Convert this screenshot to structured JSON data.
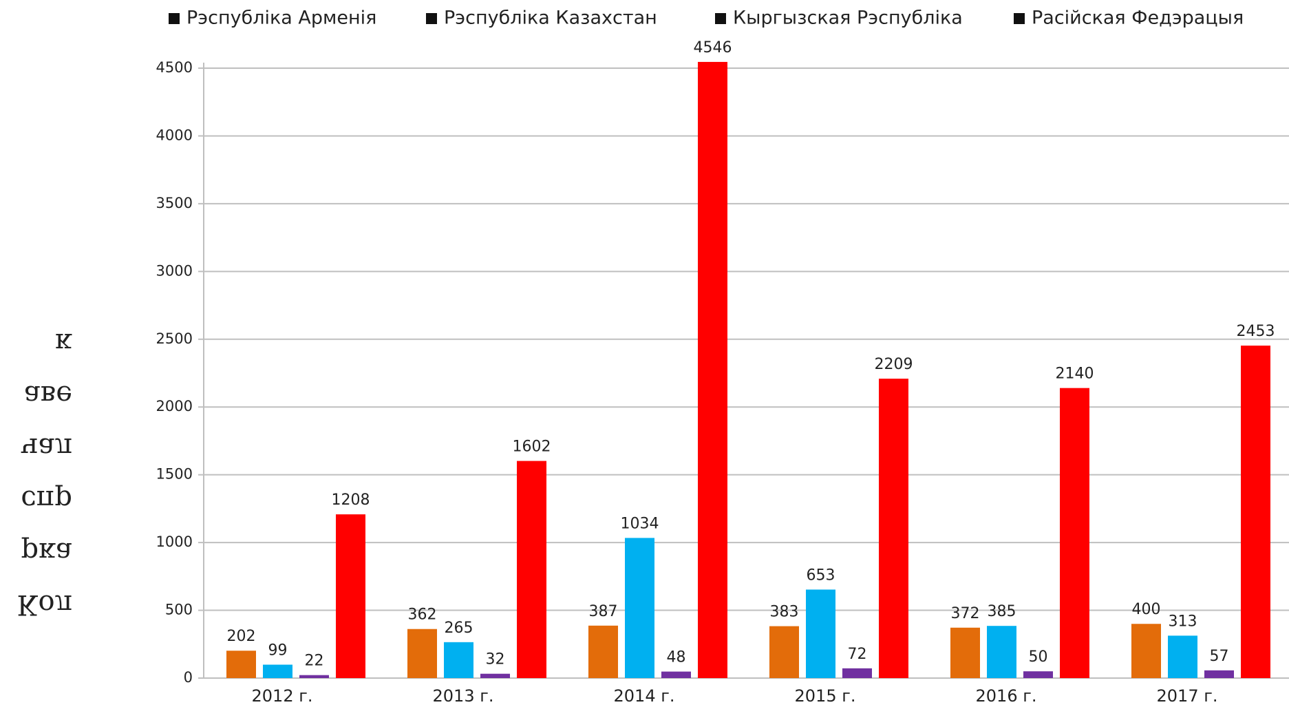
{
  "chart_data": {
    "type": "bar",
    "y_label_lines": [
      "Кол",
      "рка",
      "спр",
      "чал",
      "аве",
      "к"
    ],
    "categories": [
      "2012 г.",
      "2013 г.",
      "2014 г.",
      "2015 г.",
      "2016 г.",
      "2017 г."
    ],
    "series": [
      {
        "name": "Рэспубліка Арменія",
        "color": "#e36c0a",
        "values": [
          202,
          362,
          387,
          383,
          372,
          400
        ]
      },
      {
        "name": "Рэспубліка Казахстан",
        "color": "#00b0f0",
        "values": [
          99,
          265,
          1034,
          653,
          385,
          313
        ]
      },
      {
        "name": "Кыргызская Рэспубліка",
        "color": "#7030a0",
        "values": [
          22,
          32,
          48,
          72,
          50,
          57
        ]
      },
      {
        "name": "Расійская Федэрацыя",
        "color": "#ff0000",
        "values": [
          1208,
          1602,
          4546,
          2209,
          2140,
          2453
        ]
      }
    ],
    "ylim": [
      0,
      4500
    ],
    "yticks": [
      0,
      500,
      1000,
      1500,
      2000,
      2500,
      3000,
      3500,
      4000,
      4500
    ],
    "grid": true,
    "legend": "top"
  }
}
